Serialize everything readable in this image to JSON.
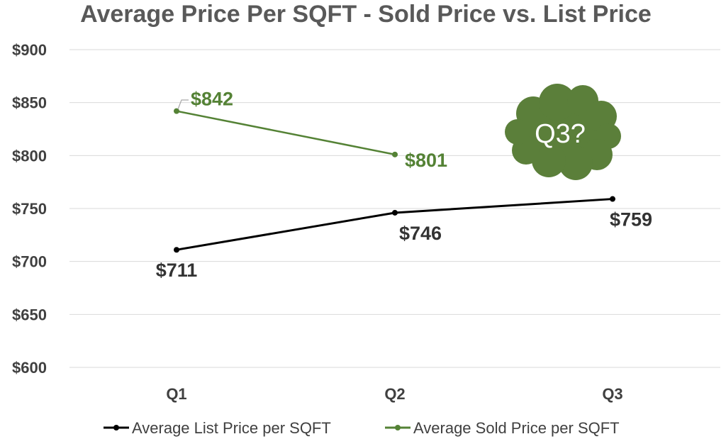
{
  "chart_data": {
    "type": "line",
    "title": "Average Price Per SQFT - Sold Price vs. List Price",
    "categories": [
      "Q1",
      "Q2",
      "Q3"
    ],
    "ylim": [
      600,
      900
    ],
    "yticks": [
      600,
      650,
      700,
      750,
      800,
      850,
      900
    ],
    "ytick_labels": [
      "$600",
      "$650",
      "$700",
      "$750",
      "$800",
      "$850",
      "$900"
    ],
    "grid": true,
    "legend_position": "bottom",
    "series": [
      {
        "name": "Average List Price per SQFT",
        "color": "#000000",
        "values": [
          711,
          746,
          759
        ],
        "labels": [
          "$711",
          "$746",
          "$759"
        ]
      },
      {
        "name": "Average Sold Price per SQFT",
        "color": "#548235",
        "values": [
          842,
          801,
          null
        ],
        "labels": [
          "$842",
          "$801",
          ""
        ]
      }
    ],
    "annotation": {
      "text": "Q3?",
      "shape": "cloud",
      "color": "#5B7F3A"
    }
  }
}
